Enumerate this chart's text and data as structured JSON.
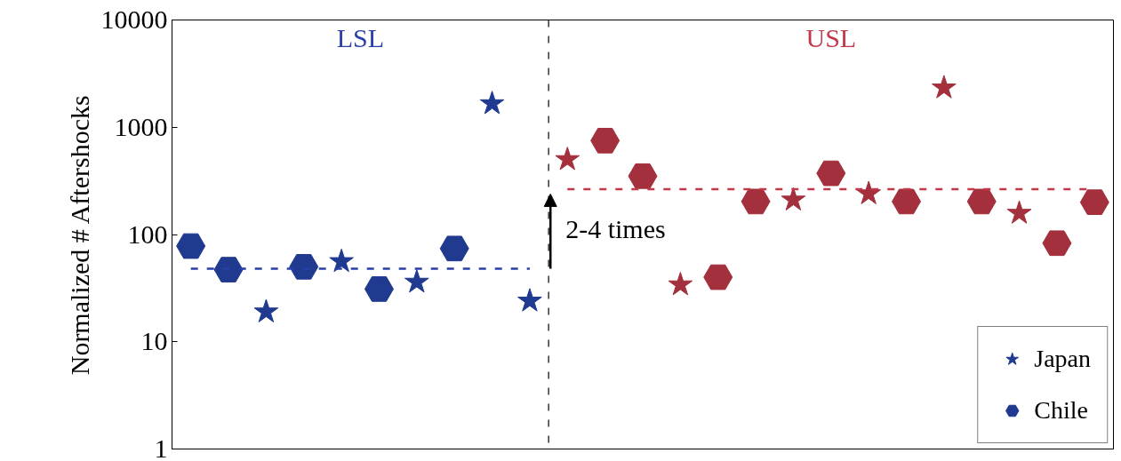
{
  "chart_data": {
    "type": "scatter",
    "ylabel": "Normalized # Aftershocks",
    "categories": [
      null,
      null,
      null,
      null,
      null,
      null,
      null,
      null,
      null,
      null,
      null,
      null,
      null,
      null,
      null,
      null,
      null,
      null,
      null,
      null,
      null,
      null,
      null,
      null,
      null
    ],
    "series": [
      {
        "name": "Japan",
        "marker": "star",
        "colors": [
          "#1f3a8f",
          "#1f3a8f",
          "#1f3a8f",
          "#1f3a8f",
          "#1f3a8f",
          "#1f3a8f",
          "#1f3a8f",
          "#1f3a8f",
          "#1f3a8f",
          "#1f3a8f",
          "#a3303c",
          "#a3303c",
          "#a3303c",
          "#a3303c",
          "#a3303c",
          "#a3303c",
          "#a3303c",
          "#a3303c",
          "#a3303c",
          "#a3303c",
          "#a3303c",
          "#a3303c",
          "#a3303c",
          "#a3303c",
          "#a3303c"
        ],
        "values": [
          null,
          null,
          19,
          null,
          56,
          null,
          36,
          null,
          1660,
          24,
          500,
          null,
          null,
          34,
          null,
          null,
          210,
          null,
          240,
          null,
          2330,
          null,
          158,
          null,
          null
        ]
      },
      {
        "name": "Chile",
        "colors": [
          "#1f3a8f",
          "#1f3a8f",
          "#1f3a8f",
          "#1f3a8f",
          "#1f3a8f",
          "#1f3a8f",
          "#1f3a8f",
          "#1f3a8f",
          "#1f3a8f",
          "#1f3a8f",
          "#a3303c",
          "#a3303c",
          "#a3303c",
          "#a3303c",
          "#a3303c",
          "#a3303c",
          "#a3303c",
          "#a3303c",
          "#a3303c",
          "#a3303c",
          "#a3303c",
          "#a3303c",
          "#a3303c",
          "#a3303c",
          "#a3303c"
        ],
        "values": [
          78,
          47,
          null,
          50,
          null,
          31,
          null,
          74,
          null,
          null,
          null,
          750,
          350,
          null,
          40,
          203,
          null,
          372,
          null,
          203,
          null,
          203,
          null,
          83,
          200
        ]
      },
      {
        "type": "line",
        "line_style": "dashed",
        "color": "#2a3fa8",
        "values": [
          48,
          48,
          48,
          48,
          48,
          48,
          48,
          48,
          48,
          48,
          null,
          null,
          null,
          null,
          null,
          null,
          null,
          null,
          null,
          null,
          null,
          null,
          null,
          null,
          null
        ]
      },
      {
        "type": "line",
        "line_style": "dashed",
        "color": "#c23a4a",
        "values": [
          null,
          null,
          null,
          null,
          null,
          null,
          null,
          null,
          null,
          null,
          265,
          265,
          265,
          265,
          265,
          265,
          265,
          265,
          265,
          265,
          265,
          265,
          265,
          265,
          265
        ]
      }
    ],
    "annotations": [
      "LSL",
      "USL",
      "2-4 times"
    ],
    "ylim": [
      1,
      10000
    ],
    "yticks": [
      1,
      10,
      100,
      1000,
      10000
    ],
    "log": "y",
    "grid": false,
    "legend": "bottom right",
    "tick_labels": "y"
  }
}
